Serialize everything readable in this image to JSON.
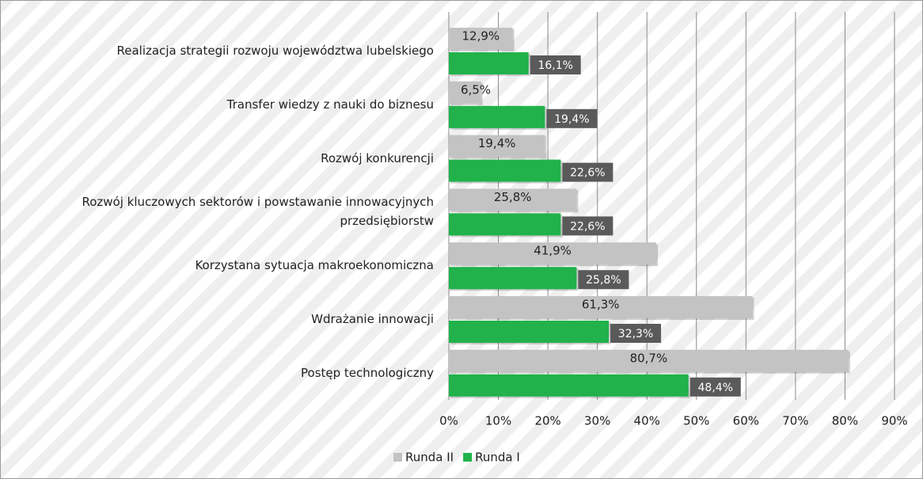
{
  "chart_data": {
    "type": "bar",
    "orientation": "horizontal",
    "categories": [
      "Realizacja strategii rozwoju województwa lubelskiego",
      "Transfer wiedzy z nauki do biznesu",
      "Rozwój konkurencji",
      "Rozwój kluczowych sektorów i powstawanie innowacyjnych przedsiębiorstw",
      "Korzystana sytuacja makroekonomiczna",
      "Wdrażanie innowacji",
      "Postęp technologiczny"
    ],
    "series": [
      {
        "name": "Runda II",
        "color": "#c3c3c3",
        "values": [
          12.9,
          6.5,
          19.4,
          25.8,
          41.9,
          61.3,
          80.7
        ],
        "value_labels": [
          "12,9%",
          "6,5%",
          "19,4%",
          "25,8%",
          "41,9%",
          "61,3%",
          "80,7%"
        ]
      },
      {
        "name": "Runda I",
        "color": "#21b24b",
        "values": [
          16.1,
          19.4,
          22.6,
          22.6,
          25.8,
          32.3,
          48.4
        ],
        "value_labels": [
          "16,1%",
          "19,4%",
          "22,6%",
          "22,6%",
          "25,8%",
          "32,3%",
          "48,4%"
        ]
      }
    ],
    "xlim": [
      0,
      90
    ],
    "xticks": [
      {
        "value": 0,
        "label": "0%"
      },
      {
        "value": 10,
        "label": "10%"
      },
      {
        "value": 20,
        "label": "20%"
      },
      {
        "value": 30,
        "label": "30%"
      },
      {
        "value": 40,
        "label": "40%"
      },
      {
        "value": 50,
        "label": "50%"
      },
      {
        "value": 60,
        "label": "60%"
      },
      {
        "value": 70,
        "label": "70%"
      },
      {
        "value": 80,
        "label": "80%"
      },
      {
        "value": 90,
        "label": "90%"
      }
    ],
    "grid": true,
    "legend": "bottom"
  }
}
